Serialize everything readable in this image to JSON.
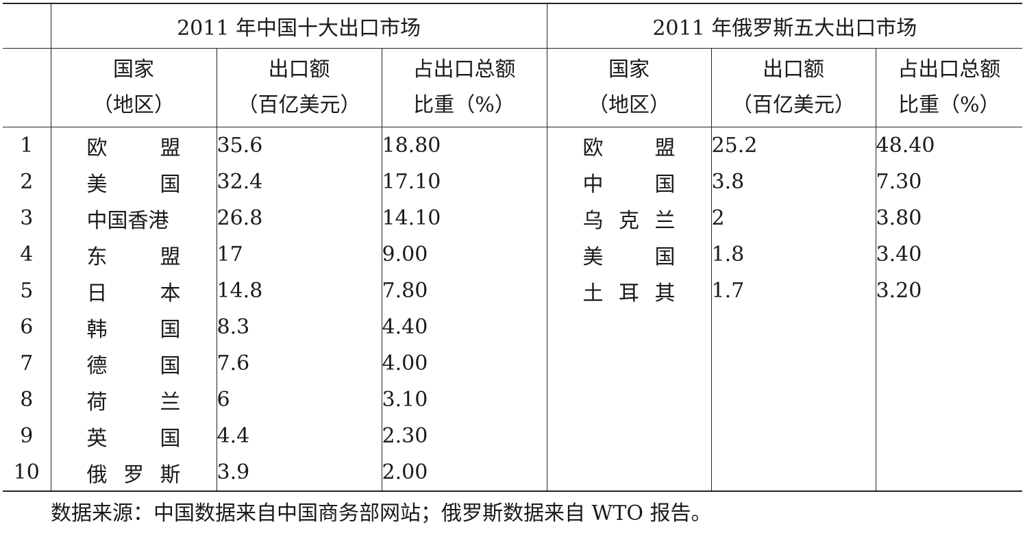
{
  "headers": {
    "china_title": "2011 年中国十大出口市场",
    "russia_title": "2011 年俄罗斯五大出口市场",
    "country_line1": "国家",
    "country_line2": "（地区）",
    "amount_line1": "出口额",
    "amount_line2": "（百亿美元）",
    "share_line1": "占出口总额",
    "share_line2": "比重（%）"
  },
  "rows": [
    {
      "rank": "1",
      "china_name": [
        "欧",
        "盟"
      ],
      "china_amount": "35.6",
      "china_share": "18.80",
      "russia_name": [
        "欧",
        "盟"
      ],
      "russia_amount": "25.2",
      "russia_share": "48.40"
    },
    {
      "rank": "2",
      "china_name": [
        "美",
        "国"
      ],
      "china_amount": "32.4",
      "china_share": "17.10",
      "russia_name": [
        "中",
        "国"
      ],
      "russia_amount": "3.8",
      "russia_share": "7.30"
    },
    {
      "rank": "3",
      "china_name": [
        "中国香港"
      ],
      "china_amount": "26.8",
      "china_share": "14.10",
      "russia_name": [
        "乌",
        "克",
        "兰"
      ],
      "russia_amount": "2",
      "russia_share": "3.80"
    },
    {
      "rank": "4",
      "china_name": [
        "东",
        "盟"
      ],
      "china_amount": "17",
      "china_share": "9.00",
      "russia_name": [
        "美",
        "国"
      ],
      "russia_amount": "1.8",
      "russia_share": "3.40"
    },
    {
      "rank": "5",
      "china_name": [
        "日",
        "本"
      ],
      "china_amount": "14.8",
      "china_share": "7.80",
      "russia_name": [
        "土",
        "耳",
        "其"
      ],
      "russia_amount": "1.7",
      "russia_share": "3.20"
    },
    {
      "rank": "6",
      "china_name": [
        "韩",
        "国"
      ],
      "china_amount": "8.3",
      "china_share": "4.40",
      "russia_name": [],
      "russia_amount": "",
      "russia_share": ""
    },
    {
      "rank": "7",
      "china_name": [
        "德",
        "国"
      ],
      "china_amount": "7.6",
      "china_share": "4.00",
      "russia_name": [],
      "russia_amount": "",
      "russia_share": ""
    },
    {
      "rank": "8",
      "china_name": [
        "荷",
        "兰"
      ],
      "china_amount": "6",
      "china_share": "3.10",
      "russia_name": [],
      "russia_amount": "",
      "russia_share": ""
    },
    {
      "rank": "9",
      "china_name": [
        "英",
        "国"
      ],
      "china_amount": "4.4",
      "china_share": "2.30",
      "russia_name": [],
      "russia_amount": "",
      "russia_share": ""
    },
    {
      "rank": "10",
      "china_name": [
        "俄",
        "罗",
        "斯"
      ],
      "china_amount": "3.9",
      "china_share": "2.00",
      "russia_name": [],
      "russia_amount": "",
      "russia_share": ""
    }
  ],
  "footnote": "数据来源：中国数据来自中国商务部网站；俄罗斯数据来自 WTO 报告。"
}
